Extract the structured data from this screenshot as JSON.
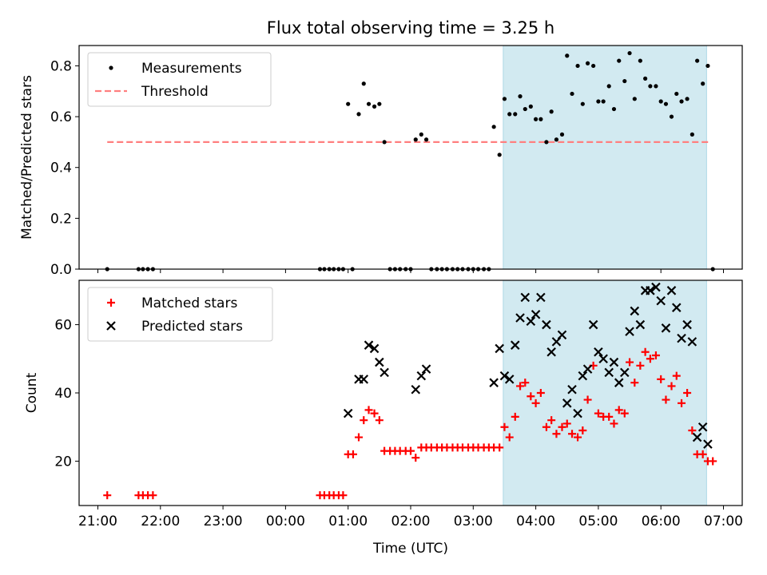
{
  "figure": {
    "title": "Flux total observing time = 3.25 h"
  },
  "colors": {
    "shade": "#add8e6",
    "threshold": "#ff7f7f",
    "matched": "#ff0000",
    "predicted": "#000000",
    "measurements": "#000000"
  },
  "chart_data": [
    {
      "type": "scatter",
      "ylabel": "Matched/Predicted stars",
      "xlim": [
        20.7,
        31.3
      ],
      "ylim": [
        0,
        0.88
      ],
      "yticks": [
        0.0,
        0.2,
        0.4,
        0.6,
        0.8
      ],
      "ytick_labels": [
        "0.0",
        "0.2",
        "0.4",
        "0.6",
        "0.8"
      ],
      "legend_position": "top-left",
      "shaded_span": [
        27.48,
        30.73
      ],
      "threshold": {
        "name": "Threshold",
        "value": 0.5,
        "x_range": [
          21.15,
          30.8
        ],
        "style": "dashed"
      },
      "series": [
        {
          "name": "Measurements",
          "points": [
            [
              21.15,
              0.0
            ],
            [
              21.65,
              0.0
            ],
            [
              21.72,
              0.0
            ],
            [
              21.8,
              0.0
            ],
            [
              21.88,
              0.0
            ],
            [
              24.55,
              0.0
            ],
            [
              24.62,
              0.0
            ],
            [
              24.7,
              0.0
            ],
            [
              24.77,
              0.0
            ],
            [
              24.85,
              0.0
            ],
            [
              24.92,
              0.0
            ],
            [
              25.07,
              0.0
            ],
            [
              25.0,
              0.65
            ],
            [
              25.17,
              0.61
            ],
            [
              25.25,
              0.73
            ],
            [
              25.33,
              0.65
            ],
            [
              25.42,
              0.64
            ],
            [
              25.5,
              0.65
            ],
            [
              25.58,
              0.5
            ],
            [
              25.67,
              0.0
            ],
            [
              25.75,
              0.0
            ],
            [
              25.83,
              0.0
            ],
            [
              25.92,
              0.0
            ],
            [
              26.0,
              0.0
            ],
            [
              26.08,
              0.51
            ],
            [
              26.17,
              0.53
            ],
            [
              26.25,
              0.51
            ],
            [
              26.33,
              0.0
            ],
            [
              26.42,
              0.0
            ],
            [
              26.5,
              0.0
            ],
            [
              26.58,
              0.0
            ],
            [
              26.67,
              0.0
            ],
            [
              26.75,
              0.0
            ],
            [
              26.83,
              0.0
            ],
            [
              26.92,
              0.0
            ],
            [
              27.0,
              0.0
            ],
            [
              27.08,
              0.0
            ],
            [
              27.17,
              0.0
            ],
            [
              27.25,
              0.0
            ],
            [
              27.33,
              0.56
            ],
            [
              27.42,
              0.45
            ],
            [
              27.5,
              0.67
            ],
            [
              27.58,
              0.61
            ],
            [
              27.67,
              0.61
            ],
            [
              27.75,
              0.68
            ],
            [
              27.83,
              0.63
            ],
            [
              27.92,
              0.64
            ],
            [
              28.0,
              0.59
            ],
            [
              28.08,
              0.59
            ],
            [
              28.17,
              0.5
            ],
            [
              28.25,
              0.62
            ],
            [
              28.33,
              0.51
            ],
            [
              28.42,
              0.53
            ],
            [
              28.5,
              0.84
            ],
            [
              28.58,
              0.69
            ],
            [
              28.67,
              0.8
            ],
            [
              28.75,
              0.65
            ],
            [
              28.83,
              0.81
            ],
            [
              28.92,
              0.8
            ],
            [
              29.0,
              0.66
            ],
            [
              29.08,
              0.66
            ],
            [
              29.17,
              0.72
            ],
            [
              29.25,
              0.63
            ],
            [
              29.33,
              0.82
            ],
            [
              29.42,
              0.74
            ],
            [
              29.5,
              0.85
            ],
            [
              29.58,
              0.67
            ],
            [
              29.67,
              0.82
            ],
            [
              29.75,
              0.75
            ],
            [
              29.83,
              0.72
            ],
            [
              29.92,
              0.72
            ],
            [
              30.0,
              0.66
            ],
            [
              30.08,
              0.65
            ],
            [
              30.17,
              0.6
            ],
            [
              30.25,
              0.69
            ],
            [
              30.33,
              0.66
            ],
            [
              30.42,
              0.67
            ],
            [
              30.5,
              0.53
            ],
            [
              30.58,
              0.82
            ],
            [
              30.67,
              0.73
            ],
            [
              30.75,
              0.8
            ],
            [
              30.83,
              0.0
            ]
          ]
        }
      ]
    },
    {
      "type": "scatter",
      "xlabel": "Time (UTC)",
      "ylabel": "Count",
      "xlim": [
        20.7,
        31.3
      ],
      "ylim": [
        7,
        73
      ],
      "yticks": [
        20,
        40,
        60
      ],
      "xticks": [
        21,
        22,
        23,
        24,
        25,
        26,
        27,
        28,
        29,
        30,
        31
      ],
      "xtick_labels": [
        "21:00",
        "22:00",
        "23:00",
        "00:00",
        "01:00",
        "02:00",
        "03:00",
        "04:00",
        "05:00",
        "06:00",
        "07:00"
      ],
      "legend_position": "top-left",
      "shaded_span": [
        27.48,
        30.73
      ],
      "series": [
        {
          "name": "Matched stars",
          "marker": "plus",
          "points": [
            [
              21.15,
              10
            ],
            [
              21.65,
              10
            ],
            [
              21.72,
              10
            ],
            [
              21.8,
              10
            ],
            [
              21.88,
              10
            ],
            [
              24.55,
              10
            ],
            [
              24.62,
              10
            ],
            [
              24.7,
              10
            ],
            [
              24.77,
              10
            ],
            [
              24.85,
              10
            ],
            [
              24.92,
              10
            ],
            [
              25.0,
              22
            ],
            [
              25.08,
              22
            ],
            [
              25.17,
              27
            ],
            [
              25.25,
              32
            ],
            [
              25.33,
              35
            ],
            [
              25.42,
              34
            ],
            [
              25.5,
              32
            ],
            [
              25.58,
              23
            ],
            [
              25.67,
              23
            ],
            [
              25.75,
              23
            ],
            [
              25.83,
              23
            ],
            [
              25.92,
              23
            ],
            [
              26.0,
              23
            ],
            [
              26.08,
              21
            ],
            [
              26.17,
              24
            ],
            [
              26.25,
              24
            ],
            [
              26.33,
              24
            ],
            [
              26.42,
              24
            ],
            [
              26.5,
              24
            ],
            [
              26.58,
              24
            ],
            [
              26.67,
              24
            ],
            [
              26.75,
              24
            ],
            [
              26.83,
              24
            ],
            [
              26.92,
              24
            ],
            [
              27.0,
              24
            ],
            [
              27.08,
              24
            ],
            [
              27.17,
              24
            ],
            [
              27.25,
              24
            ],
            [
              27.33,
              24
            ],
            [
              27.42,
              24
            ],
            [
              27.5,
              30
            ],
            [
              27.58,
              27
            ],
            [
              27.67,
              33
            ],
            [
              27.75,
              42
            ],
            [
              27.83,
              43
            ],
            [
              27.92,
              39
            ],
            [
              28.0,
              37
            ],
            [
              28.08,
              40
            ],
            [
              28.17,
              30
            ],
            [
              28.25,
              32
            ],
            [
              28.33,
              28
            ],
            [
              28.42,
              30
            ],
            [
              28.5,
              31
            ],
            [
              28.58,
              28
            ],
            [
              28.67,
              27
            ],
            [
              28.75,
              29
            ],
            [
              28.83,
              38
            ],
            [
              28.92,
              48
            ],
            [
              29.0,
              34
            ],
            [
              29.08,
              33
            ],
            [
              29.17,
              33
            ],
            [
              29.25,
              31
            ],
            [
              29.33,
              35
            ],
            [
              29.42,
              34
            ],
            [
              29.5,
              49
            ],
            [
              29.58,
              43
            ],
            [
              29.67,
              48
            ],
            [
              29.75,
              52
            ],
            [
              29.83,
              50
            ],
            [
              29.92,
              51
            ],
            [
              30.0,
              44
            ],
            [
              30.08,
              38
            ],
            [
              30.17,
              42
            ],
            [
              30.25,
              45
            ],
            [
              30.33,
              37
            ],
            [
              30.42,
              40
            ],
            [
              30.5,
              29
            ],
            [
              30.58,
              22
            ],
            [
              30.67,
              22
            ],
            [
              30.75,
              20
            ],
            [
              30.83,
              20
            ]
          ]
        },
        {
          "name": "Predicted stars",
          "marker": "x",
          "points": [
            [
              25.0,
              34
            ],
            [
              25.17,
              44
            ],
            [
              25.25,
              44
            ],
            [
              25.33,
              54
            ],
            [
              25.42,
              53
            ],
            [
              25.5,
              49
            ],
            [
              25.58,
              46
            ],
            [
              26.08,
              41
            ],
            [
              26.17,
              45
            ],
            [
              26.25,
              47
            ],
            [
              27.33,
              43
            ],
            [
              27.42,
              53
            ],
            [
              27.5,
              45
            ],
            [
              27.58,
              44
            ],
            [
              27.67,
              54
            ],
            [
              27.75,
              62
            ],
            [
              27.83,
              68
            ],
            [
              27.92,
              61
            ],
            [
              28.0,
              63
            ],
            [
              28.08,
              68
            ],
            [
              28.17,
              60
            ],
            [
              28.25,
              52
            ],
            [
              28.33,
              55
            ],
            [
              28.42,
              57
            ],
            [
              28.5,
              37
            ],
            [
              28.58,
              41
            ],
            [
              28.67,
              34
            ],
            [
              28.75,
              45
            ],
            [
              28.83,
              47
            ],
            [
              28.92,
              60
            ],
            [
              29.0,
              52
            ],
            [
              29.08,
              50
            ],
            [
              29.17,
              46
            ],
            [
              29.25,
              49
            ],
            [
              29.33,
              43
            ],
            [
              29.42,
              46
            ],
            [
              29.5,
              58
            ],
            [
              29.58,
              64
            ],
            [
              29.67,
              60
            ],
            [
              29.75,
              70
            ],
            [
              29.83,
              70
            ],
            [
              29.92,
              71
            ],
            [
              30.0,
              67
            ],
            [
              30.08,
              59
            ],
            [
              30.17,
              70
            ],
            [
              30.25,
              65
            ],
            [
              30.33,
              56
            ],
            [
              30.42,
              60
            ],
            [
              30.5,
              55
            ],
            [
              30.58,
              27
            ],
            [
              30.67,
              30
            ],
            [
              30.75,
              25
            ]
          ]
        }
      ]
    }
  ]
}
